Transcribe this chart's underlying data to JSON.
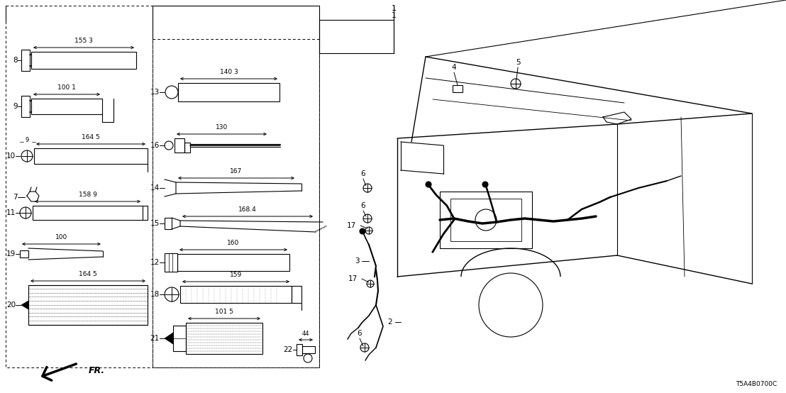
{
  "bg_color": "#ffffff",
  "part_code": "T5A4B0700C",
  "black": "#000000"
}
